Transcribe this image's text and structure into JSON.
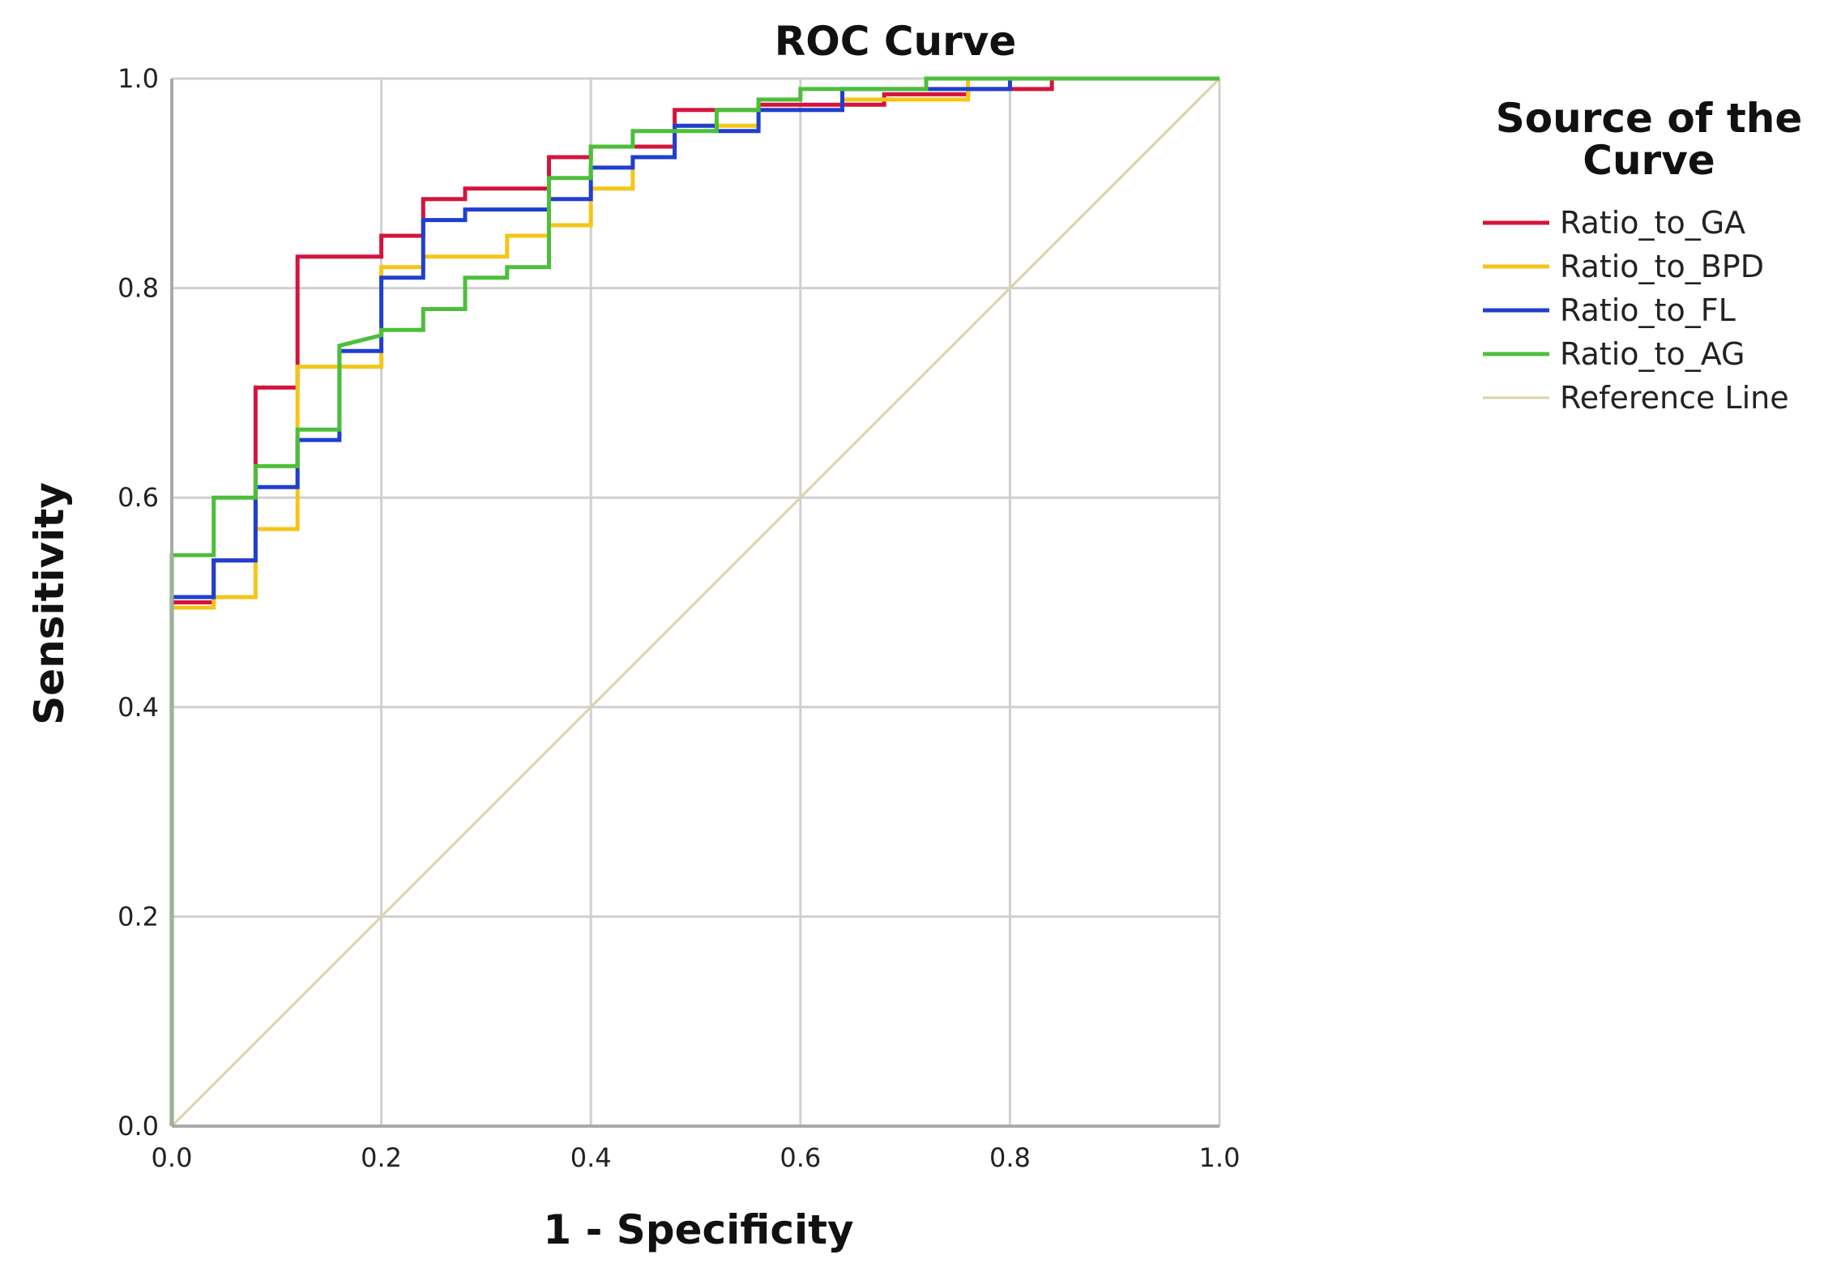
{
  "chart_data": {
    "type": "line",
    "title": "ROC Curve",
    "xlabel": "1 - Specificity",
    "ylabel": "Sensitivity",
    "xlim": [
      0,
      1
    ],
    "ylim": [
      0,
      1
    ],
    "xticks": [
      "0.0",
      "0.2",
      "0.4",
      "0.6",
      "0.8",
      "1.0"
    ],
    "yticks": [
      "0.0",
      "0.2",
      "0.4",
      "0.6",
      "0.8",
      "1.0"
    ],
    "grid": true,
    "legend_title": "Source of the Curve",
    "legend_position": "right",
    "series": [
      {
        "name": "Ratio_to_GA",
        "color": "#d4143c",
        "points": [
          [
            0,
            0
          ],
          [
            0,
            0.5
          ],
          [
            0.04,
            0.5
          ],
          [
            0.04,
            0.54
          ],
          [
            0.08,
            0.54
          ],
          [
            0.08,
            0.705
          ],
          [
            0.12,
            0.705
          ],
          [
            0.12,
            0.83
          ],
          [
            0.2,
            0.83
          ],
          [
            0.2,
            0.85
          ],
          [
            0.24,
            0.85
          ],
          [
            0.24,
            0.885
          ],
          [
            0.28,
            0.885
          ],
          [
            0.28,
            0.895
          ],
          [
            0.36,
            0.895
          ],
          [
            0.36,
            0.925
          ],
          [
            0.4,
            0.925
          ],
          [
            0.4,
            0.935
          ],
          [
            0.48,
            0.935
          ],
          [
            0.48,
            0.97
          ],
          [
            0.56,
            0.97
          ],
          [
            0.56,
            0.975
          ],
          [
            0.68,
            0.975
          ],
          [
            0.68,
            0.985
          ],
          [
            0.76,
            0.985
          ],
          [
            0.76,
            0.99
          ],
          [
            0.84,
            0.99
          ],
          [
            0.84,
            1
          ],
          [
            1,
            1
          ]
        ]
      },
      {
        "name": "Ratio_to_BPD",
        "color": "#f5c518",
        "points": [
          [
            0,
            0
          ],
          [
            0,
            0.495
          ],
          [
            0.04,
            0.495
          ],
          [
            0.04,
            0.505
          ],
          [
            0.08,
            0.505
          ],
          [
            0.08,
            0.57
          ],
          [
            0.12,
            0.57
          ],
          [
            0.12,
            0.725
          ],
          [
            0.2,
            0.725
          ],
          [
            0.2,
            0.82
          ],
          [
            0.24,
            0.82
          ],
          [
            0.24,
            0.83
          ],
          [
            0.32,
            0.83
          ],
          [
            0.32,
            0.85
          ],
          [
            0.36,
            0.85
          ],
          [
            0.36,
            0.86
          ],
          [
            0.4,
            0.86
          ],
          [
            0.4,
            0.895
          ],
          [
            0.44,
            0.895
          ],
          [
            0.44,
            0.925
          ],
          [
            0.48,
            0.925
          ],
          [
            0.48,
            0.955
          ],
          [
            0.56,
            0.955
          ],
          [
            0.56,
            0.97
          ],
          [
            0.64,
            0.97
          ],
          [
            0.64,
            0.98
          ],
          [
            0.76,
            0.98
          ],
          [
            0.76,
            1
          ],
          [
            1,
            1
          ]
        ]
      },
      {
        "name": "Ratio_to_FL",
        "color": "#1f3fd1",
        "points": [
          [
            0,
            0
          ],
          [
            0,
            0.505
          ],
          [
            0.04,
            0.505
          ],
          [
            0.04,
            0.54
          ],
          [
            0.08,
            0.54
          ],
          [
            0.08,
            0.61
          ],
          [
            0.12,
            0.61
          ],
          [
            0.12,
            0.655
          ],
          [
            0.16,
            0.655
          ],
          [
            0.16,
            0.74
          ],
          [
            0.2,
            0.74
          ],
          [
            0.2,
            0.81
          ],
          [
            0.24,
            0.81
          ],
          [
            0.24,
            0.865
          ],
          [
            0.28,
            0.865
          ],
          [
            0.28,
            0.875
          ],
          [
            0.36,
            0.875
          ],
          [
            0.36,
            0.885
          ],
          [
            0.4,
            0.885
          ],
          [
            0.4,
            0.915
          ],
          [
            0.44,
            0.915
          ],
          [
            0.44,
            0.925
          ],
          [
            0.48,
            0.925
          ],
          [
            0.48,
            0.955
          ],
          [
            0.52,
            0.955
          ],
          [
            0.52,
            0.95
          ],
          [
            0.56,
            0.95
          ],
          [
            0.56,
            0.97
          ],
          [
            0.64,
            0.97
          ],
          [
            0.64,
            0.99
          ],
          [
            0.8,
            0.99
          ],
          [
            0.8,
            1
          ],
          [
            1,
            1
          ]
        ]
      },
      {
        "name": "Ratio_to_AG",
        "color": "#4cbf3a",
        "points": [
          [
            0,
            0
          ],
          [
            0,
            0.545
          ],
          [
            0.04,
            0.545
          ],
          [
            0.04,
            0.6
          ],
          [
            0.08,
            0.6
          ],
          [
            0.08,
            0.63
          ],
          [
            0.12,
            0.63
          ],
          [
            0.12,
            0.665
          ],
          [
            0.16,
            0.665
          ],
          [
            0.16,
            0.745
          ],
          [
            0.2,
            0.755
          ],
          [
            0.2,
            0.76
          ],
          [
            0.24,
            0.76
          ],
          [
            0.24,
            0.78
          ],
          [
            0.28,
            0.78
          ],
          [
            0.28,
            0.81
          ],
          [
            0.32,
            0.81
          ],
          [
            0.32,
            0.82
          ],
          [
            0.36,
            0.82
          ],
          [
            0.36,
            0.905
          ],
          [
            0.4,
            0.905
          ],
          [
            0.4,
            0.935
          ],
          [
            0.44,
            0.935
          ],
          [
            0.44,
            0.95
          ],
          [
            0.52,
            0.95
          ],
          [
            0.52,
            0.97
          ],
          [
            0.56,
            0.97
          ],
          [
            0.56,
            0.98
          ],
          [
            0.6,
            0.98
          ],
          [
            0.6,
            0.99
          ],
          [
            0.72,
            0.99
          ],
          [
            0.72,
            1
          ],
          [
            1,
            1
          ]
        ]
      },
      {
        "name": "Reference Line",
        "color": "#d8d3a8",
        "points": [
          [
            0,
            0
          ],
          [
            1,
            1
          ]
        ]
      }
    ]
  }
}
